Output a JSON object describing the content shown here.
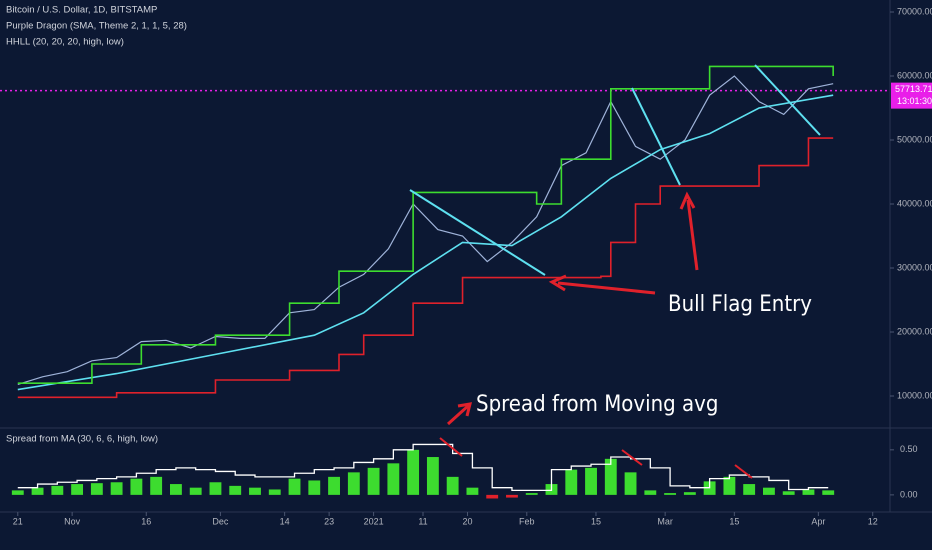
{
  "chart_data": [
    {
      "type": "line",
      "title": "Bitcoin / U.S. Dollar, 1D, BITSTAMP",
      "legend_entries": [
        "Purple Dragon (SMA, Theme 2, 1, 1, 5, 28)",
        "HHLL (20, 20, 20, high, low)"
      ],
      "annotations": [
        "Bull Flag Entry",
        "Spread from Moving avg"
      ],
      "last_price": 57713.71,
      "countdown": "13:01:30",
      "price_label_color": "#e91ee9",
      "xlim": [
        -3.6,
        176.5
      ],
      "xticks": [
        {
          "value": 0,
          "label": "21"
        },
        {
          "value": 11,
          "label": "Nov"
        },
        {
          "value": 26,
          "label": "16"
        },
        {
          "value": 41,
          "label": "Dec"
        },
        {
          "value": 54,
          "label": "14"
        },
        {
          "value": 63,
          "label": "23"
        },
        {
          "value": 72,
          "label": "2021"
        },
        {
          "value": 82,
          "label": "11"
        },
        {
          "value": 91,
          "label": "20"
        },
        {
          "value": 103,
          "label": "Feb"
        },
        {
          "value": 117,
          "label": "15"
        },
        {
          "value": 131,
          "label": "Mar"
        },
        {
          "value": 145,
          "label": "15"
        },
        {
          "value": 162,
          "label": "Apr"
        },
        {
          "value": 173,
          "label": "12"
        }
      ],
      "ylim": [
        5000,
        71875
      ],
      "yticks": [
        {
          "value": 10000,
          "label": "10000.00"
        },
        {
          "value": 20000,
          "label": "20000.00"
        },
        {
          "value": 30000,
          "label": "30000.00"
        },
        {
          "value": 40000,
          "label": "40000.00"
        },
        {
          "value": 50000,
          "label": "50000.00"
        },
        {
          "value": 60000,
          "label": "60000.00"
        },
        {
          "value": 70000,
          "label": "70000.00"
        }
      ],
      "series": [
        {
          "color": "#9fb3d9",
          "step": false,
          "x": [
            0,
            5,
            10,
            15,
            20,
            25,
            30,
            35,
            40,
            45,
            50,
            55,
            60,
            65,
            70,
            75,
            80,
            85,
            90,
            95,
            100,
            105,
            110,
            115,
            120,
            125,
            130,
            135,
            140,
            145,
            150,
            155,
            160,
            165
          ],
          "values": [
            11800,
            13000,
            13800,
            15500,
            16000,
            18500,
            18700,
            17500,
            19300,
            19000,
            19000,
            23000,
            23500,
            27000,
            29000,
            33000,
            40000,
            36000,
            35000,
            31000,
            34000,
            38000,
            46000,
            48000,
            56000,
            49000,
            47000,
            50000,
            57000,
            60000,
            56000,
            54000,
            58000,
            58800
          ]
        },
        {
          "color": "#5ee0f0",
          "step": false,
          "x": [
            0,
            20,
            40,
            60,
            70,
            80,
            90,
            100,
            110,
            120,
            130,
            140,
            150,
            165
          ],
          "values": [
            11000,
            13500,
            16500,
            19500,
            23000,
            29000,
            34000,
            33500,
            38000,
            44000,
            48500,
            51000,
            55000,
            57000
          ]
        },
        {
          "color": "#3ddc2f",
          "step": true,
          "x": [
            0,
            15,
            25,
            40,
            55,
            65,
            80,
            100,
            105,
            110,
            120,
            130,
            140,
            160,
            165
          ],
          "values": [
            12000,
            15000,
            18000,
            19500,
            24500,
            29500,
            41800,
            41800,
            40000,
            47000,
            58000,
            58000,
            61500,
            61500,
            60000
          ]
        },
        {
          "color": "#e0212b",
          "step": true,
          "x": [
            0,
            20,
            40,
            55,
            65,
            70,
            80,
            90,
            118,
            120,
            125,
            130,
            145,
            150,
            160,
            165
          ],
          "values": [
            9800,
            10500,
            12500,
            14000,
            16500,
            19500,
            24500,
            28500,
            28700,
            34000,
            40000,
            42800,
            42800,
            46000,
            50300,
            50300
          ]
        }
      ]
    },
    {
      "type": "bar",
      "title": "Spread from MA (30, 6, 6, high, low)",
      "ylim": [
        -0.19,
        0.72
      ],
      "yticks": [
        {
          "value": 0.5,
          "label": "0.50"
        },
        {
          "value": 0,
          "label": "0.00"
        }
      ],
      "positive_color": "#3ddc2f",
      "negative_color": "#e0212b",
      "line_color": "#ffffff",
      "x": [
        0,
        4,
        8,
        12,
        16,
        20,
        24,
        28,
        32,
        36,
        40,
        44,
        48,
        52,
        56,
        60,
        64,
        68,
        72,
        76,
        80,
        84,
        88,
        92,
        96,
        100,
        104,
        108,
        112,
        116,
        120,
        124,
        128,
        132,
        136,
        140,
        144,
        148,
        152,
        156,
        160,
        164
      ],
      "values": [
        0.05,
        0.08,
        0.1,
        0.12,
        0.13,
        0.14,
        0.18,
        0.2,
        0.12,
        0.08,
        0.14,
        0.1,
        0.08,
        0.06,
        0.18,
        0.16,
        0.2,
        0.25,
        0.3,
        0.35,
        0.5,
        0.42,
        0.2,
        0.08,
        -0.04,
        -0.03,
        0.02,
        0.12,
        0.28,
        0.3,
        0.4,
        0.25,
        0.05,
        0.02,
        0.03,
        0.15,
        0.2,
        0.12,
        0.08,
        0.04,
        0.06,
        0.05
      ],
      "line_values": [
        0.08,
        0.12,
        0.14,
        0.16,
        0.18,
        0.2,
        0.24,
        0.28,
        0.3,
        0.28,
        0.26,
        0.22,
        0.2,
        0.2,
        0.24,
        0.28,
        0.3,
        0.36,
        0.4,
        0.5,
        0.56,
        0.56,
        0.46,
        0.3,
        0.08,
        0.05,
        0.05,
        0.28,
        0.32,
        0.34,
        0.42,
        0.4,
        0.3,
        0.1,
        0.08,
        0.18,
        0.22,
        0.2,
        0.16,
        0.06,
        0.08,
        0.08
      ]
    }
  ]
}
